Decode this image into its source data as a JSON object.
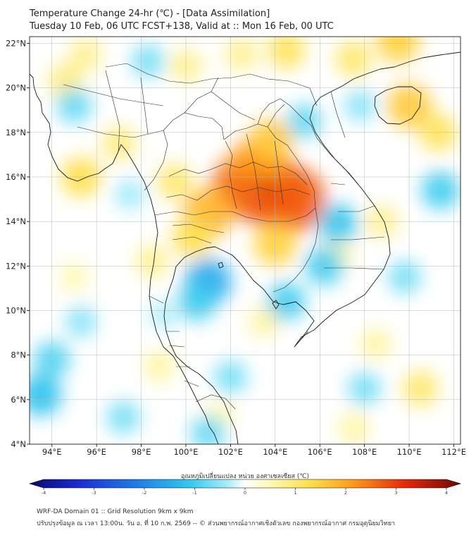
{
  "header": {
    "title_line1": "Temperature Change 24-hr (℃) - [Data Assimilation]",
    "title_line2": "Tuesday 10 Feb, 06 UTC FCST+138, Valid at :: Mon 16 Feb, 00 UTC"
  },
  "map": {
    "lat_labels": [
      "22°N",
      "20°N",
      "18°N",
      "16°N",
      "14°N",
      "12°N",
      "10°N",
      "8°N",
      "6°N",
      "4°N"
    ],
    "lon_labels": [
      "94°E",
      "96°E",
      "98°E",
      "100°E",
      "102°E",
      "104°E",
      "106°E",
      "108°E",
      "110°E",
      "112°E"
    ],
    "extent": {
      "lon_min": 93,
      "lon_max": 112.3,
      "lat_min": 4,
      "lat_max": 22.3
    },
    "anomalies": [
      {
        "lon": 103.6,
        "lat": 15.5,
        "value": 3.0
      },
      {
        "lon": 102.6,
        "lat": 15.6,
        "value": 2.4
      },
      {
        "lon": 104.8,
        "lat": 15.0,
        "value": 2.5
      },
      {
        "lon": 103.2,
        "lat": 16.5,
        "value": 2.0
      },
      {
        "lon": 101.0,
        "lat": 14.4,
        "value": 1.6
      },
      {
        "lon": 103.8,
        "lat": 17.6,
        "value": 1.3
      },
      {
        "lon": 100.3,
        "lat": 13.3,
        "value": 1.0
      },
      {
        "lon": 104.0,
        "lat": 13.0,
        "value": 1.2
      },
      {
        "lon": 99.5,
        "lat": 15.8,
        "value": 0.8
      },
      {
        "lon": 98.5,
        "lat": 12.2,
        "value": 0.6
      },
      {
        "lon": 95.3,
        "lat": 16.0,
        "value": 1.0
      },
      {
        "lon": 94.6,
        "lat": 20.3,
        "value": 0.7
      },
      {
        "lon": 95.5,
        "lat": 21.5,
        "value": 0.6
      },
      {
        "lon": 97.0,
        "lat": 17.5,
        "value": 0.7
      },
      {
        "lon": 100.0,
        "lat": 21.0,
        "value": 0.6
      },
      {
        "lon": 102.5,
        "lat": 21.5,
        "value": 0.6
      },
      {
        "lon": 104.5,
        "lat": 21.7,
        "value": 0.9
      },
      {
        "lon": 107.5,
        "lat": 21.3,
        "value": 0.8
      },
      {
        "lon": 109.5,
        "lat": 22.1,
        "value": 1.2
      },
      {
        "lon": 110.0,
        "lat": 19.2,
        "value": 1.3
      },
      {
        "lon": 111.3,
        "lat": 18.0,
        "value": 0.9
      },
      {
        "lon": 108.8,
        "lat": 14.0,
        "value": 0.6
      },
      {
        "lon": 106.8,
        "lat": 12.5,
        "value": 0.5
      },
      {
        "lon": 103.5,
        "lat": 9.5,
        "value": 0.5
      },
      {
        "lon": 110.5,
        "lat": 6.5,
        "value": 0.8
      },
      {
        "lon": 108.5,
        "lat": 8.5,
        "value": 0.5
      },
      {
        "lon": 107.5,
        "lat": 4.7,
        "value": 0.5
      },
      {
        "lon": 98.8,
        "lat": 7.5,
        "value": 0.5
      },
      {
        "lon": 101.5,
        "lat": 5.3,
        "value": 0.4
      },
      {
        "lon": 95.0,
        "lat": 11.5,
        "value": 0.4
      },
      {
        "lon": 101.0,
        "lat": 11.3,
        "value": -1.4
      },
      {
        "lon": 100.5,
        "lat": 10.4,
        "value": -0.9
      },
      {
        "lon": 106.8,
        "lat": 13.9,
        "value": -1.0
      },
      {
        "lon": 106.2,
        "lat": 12.0,
        "value": -0.9
      },
      {
        "lon": 104.5,
        "lat": 10.4,
        "value": -0.9
      },
      {
        "lon": 93.5,
        "lat": 6.2,
        "value": -1.1
      },
      {
        "lon": 94.0,
        "lat": 7.8,
        "value": -0.8
      },
      {
        "lon": 95.0,
        "lat": 19.2,
        "value": -0.7
      },
      {
        "lon": 98.3,
        "lat": 21.2,
        "value": -0.6
      },
      {
        "lon": 97.5,
        "lat": 15.2,
        "value": -0.4
      },
      {
        "lon": 105.3,
        "lat": 18.5,
        "value": -0.7
      },
      {
        "lon": 107.8,
        "lat": 19.2,
        "value": -0.5
      },
      {
        "lon": 111.4,
        "lat": 15.4,
        "value": -0.9
      },
      {
        "lon": 109.8,
        "lat": 11.5,
        "value": -0.6
      },
      {
        "lon": 102.0,
        "lat": 7.0,
        "value": -0.6
      },
      {
        "lon": 97.2,
        "lat": 5.2,
        "value": -0.6
      },
      {
        "lon": 101.0,
        "lat": 4.5,
        "value": -0.7
      },
      {
        "lon": 108.0,
        "lat": 6.5,
        "value": -0.6
      },
      {
        "lon": 95.3,
        "lat": 9.5,
        "value": -0.5
      },
      {
        "lon": 99.0,
        "lat": 9.8,
        "value": -0.3
      }
    ]
  },
  "colorbar": {
    "label": "อุณหภูมิเปลี่ยนแปลง หน่วย องศาเซลเซียส (℃)",
    "ticks": [
      "-4",
      "-3",
      "-2",
      "-1",
      "0",
      "1",
      "2",
      "3",
      "4"
    ],
    "min": -4,
    "max": 4
  },
  "footer": {
    "line1": "WRF-DA Domain 01 :: Grid Resolution 9km x 9km",
    "line2": "ปรับปรุงข้อมูล ณ เวลา 13:00น. วัน อ. ที่ 10 ก.พ. 2569 -- © ส่วนพยากรณ์อากาศเชิงตัวเลข กองพยากรณ์อากาศ กรมอุตุนิยมวิทยา"
  }
}
